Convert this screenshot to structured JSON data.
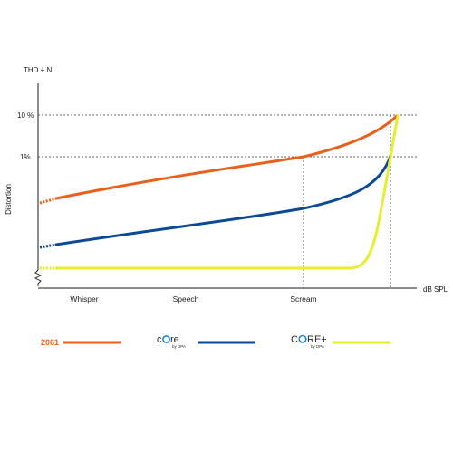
{
  "chart_data": {
    "type": "line",
    "title": "",
    "ylabel_top": "THD + N",
    "ylabel_side": "Distortion",
    "xlabel": "dB SPL",
    "y_ticks": [
      "10 %",
      "1%"
    ],
    "x_categories": [
      "Whisper",
      "Speech",
      "Scream"
    ],
    "grid": false,
    "legend_position": "bottom",
    "series": [
      {
        "key": "s2061",
        "name": "2061",
        "color": "#e8601c"
      },
      {
        "key": "core",
        "name": "core by DPA",
        "color": "#0d4a96",
        "logo_text": "c",
        "logo_text_rest": "re",
        "logo_sub": "by DPA"
      },
      {
        "key": "coreplus",
        "name": "CORE+ by DPA",
        "color": "#e6ee2e",
        "logo_text": "C",
        "logo_text_rest": "RE+",
        "logo_sub": "by DPA"
      }
    ]
  }
}
